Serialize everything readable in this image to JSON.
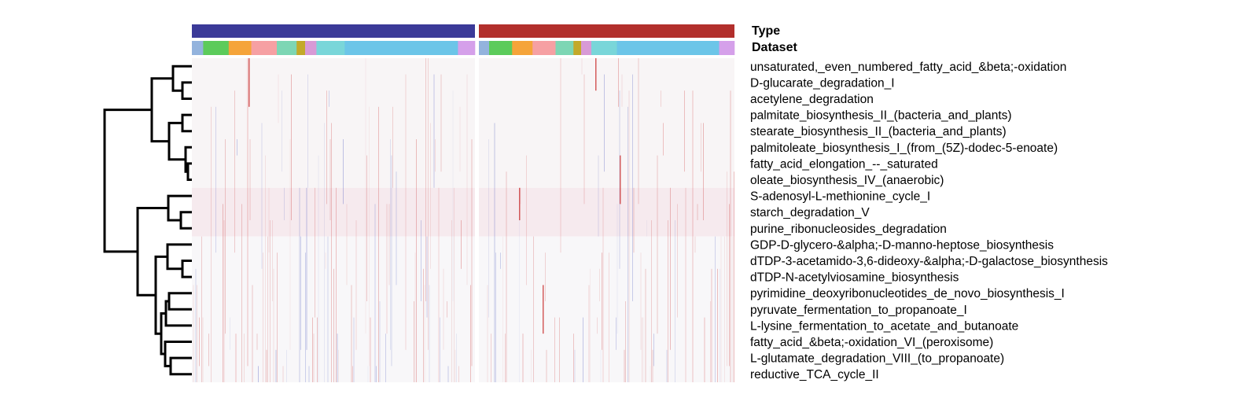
{
  "chart_data": {
    "type": "heatmap",
    "title": "",
    "annotations": [
      {
        "name": "Type",
        "groups": [
          {
            "color": "#3b3a98",
            "fraction": 0.5
          },
          {
            "color": "#b22f2c",
            "fraction": 0.5
          }
        ]
      },
      {
        "name": "Dataset",
        "colors_per_half": [
          {
            "color": "#93b3dd",
            "fraction": 0.04
          },
          {
            "color": "#5ccb5b",
            "fraction": 0.09
          },
          {
            "color": "#f5a43a",
            "fraction": 0.08
          },
          {
            "color": "#f6a0a3",
            "fraction": 0.09
          },
          {
            "color": "#7dd6b4",
            "fraction": 0.07
          },
          {
            "color": "#c3a92a",
            "fraction": 0.03
          },
          {
            "color": "#d89ad6",
            "fraction": 0.04
          },
          {
            "color": "#79d6d9",
            "fraction": 0.1
          },
          {
            "color": "#6cc5e8",
            "fraction": 0.4
          },
          {
            "color": "#d5a0ea",
            "fraction": 0.06
          }
        ]
      }
    ],
    "rows": [
      "unsaturated,_even_numbered_fatty_acid_&beta;-oxidation",
      "D-glucarate_degradation_I",
      "acetylene_degradation",
      "palmitate_biosynthesis_II_(bacteria_and_plants)",
      "stearate_biosynthesis_II_(bacteria_and_plants)",
      "palmitoleate_biosynthesis_I_(from_(5Z)-dodec-5-enoate)",
      "fatty_acid_elongation_--_saturated",
      "oleate_biosynthesis_IV_(anaerobic)",
      "S-adenosyl-L-methionine_cycle_I",
      "starch_degradation_V",
      "purine_ribonucleosides_degradation",
      "GDP-D-glycero-&alpha;-D-manno-heptose_biosynthesis",
      "dTDP-3-acetamido-3,6-dideoxy-&alpha;-D-galactose_biosynthesis",
      "dTDP-N-acetylviosamine_biosynthesis",
      "pyrimidine_deoxyribonucleotides_de_novo_biosynthesis_I",
      "pyruvate_fermentation_to_propanoate_I",
      "L-lysine_fermentation_to_acetate_and_butanoate",
      "fatty_acid_&beta;-oxidation_VI_(peroxisome)",
      "L-glutamate_degradation_VIII_(to_propanoate)",
      "reductive_TCA_cycle_II"
    ],
    "row_clusters": [
      {
        "rows": [
          0,
          7
        ],
        "tint": "#f8f5f6"
      },
      {
        "rows": [
          8,
          10
        ],
        "tint": "#f6eaee"
      },
      {
        "rows": [
          11,
          19
        ],
        "tint": "#f8f7f9"
      }
    ],
    "color_scale": {
      "low": "#2f3fb5",
      "mid": "#ffffff",
      "high": "#c82828"
    },
    "grid": false,
    "legend": "none"
  }
}
